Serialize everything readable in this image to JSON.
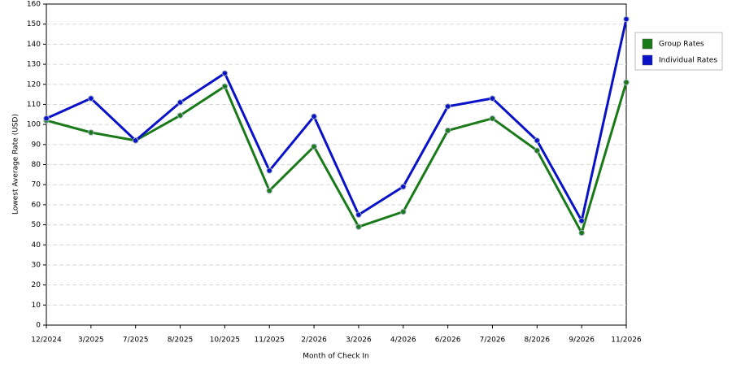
{
  "chart_data": {
    "type": "line",
    "y_label": "Lowest Average Rate (USD)",
    "x_label": "Month of Check In",
    "categories": [
      "12/2024",
      "3/2025",
      "7/2025",
      "8/2025",
      "10/2025",
      "11/2025",
      "2/2026",
      "3/2026",
      "4/2026",
      "6/2026",
      "7/2026",
      "8/2026",
      "9/2026",
      "11/2026"
    ],
    "series": [
      {
        "name": "Group Rates",
        "color": "#1a7a1a",
        "values": [
          102,
          96,
          92,
          104.5,
          119,
          67,
          89,
          49,
          56.5,
          97,
          103,
          87,
          46,
          121
        ]
      },
      {
        "name": "Individual Rates",
        "color": "#0a12c8",
        "values": [
          103,
          113,
          92,
          111,
          125.5,
          77,
          104,
          55,
          69,
          109,
          113,
          92,
          52,
          152.5
        ]
      }
    ],
    "ylim": [
      0,
      160
    ],
    "yticks": [
      0,
      10,
      20,
      30,
      40,
      50,
      60,
      70,
      80,
      90,
      100,
      110,
      120,
      130,
      140,
      150,
      160
    ],
    "grid": true,
    "legend": "right"
  }
}
